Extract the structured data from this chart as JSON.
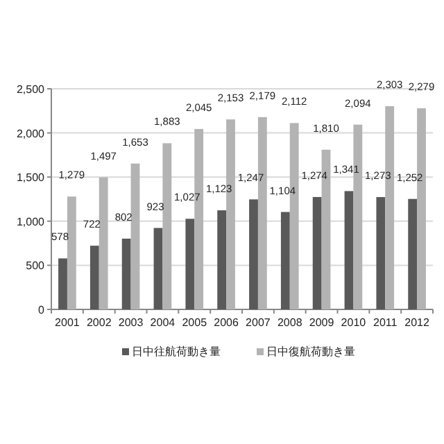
{
  "chart_data": {
    "type": "bar",
    "categories": [
      "2001",
      "2002",
      "2003",
      "2004",
      "2005",
      "2006",
      "2007",
      "2008",
      "2009",
      "2010",
      "2011",
      "2012"
    ],
    "series": [
      {
        "name": "日中往航荷動き量",
        "color": "#595959",
        "values": [
          578,
          722,
          802,
          923,
          1027,
          1123,
          1247,
          1104,
          1274,
          1341,
          1273,
          1252
        ],
        "value_labels": [
          "578",
          "722",
          "802",
          "923",
          "1,027",
          "1,123",
          "1,247",
          "1,104",
          "1,274",
          "1,341",
          "1,273",
          "1,252"
        ]
      },
      {
        "name": "日中復航荷動き量",
        "color": "#b3b3b3",
        "values": [
          1279,
          1497,
          1653,
          1883,
          2045,
          2153,
          2179,
          2112,
          1810,
          2094,
          2303,
          2279
        ],
        "value_labels": [
          "1,279",
          "1,497",
          "1,653",
          "1,883",
          "2,045",
          "2,153",
          "2,179",
          "2,112",
          "1,810",
          "2,094",
          "2,303",
          "2,279"
        ]
      }
    ],
    "ylim": [
      0,
      2500
    ],
    "yticks": [
      0,
      500,
      {
        "value": 1000,
        "label": "1,000"
      },
      {
        "value": 1500,
        "label": "1,500"
      },
      {
        "value": 2000,
        "label": "2,000"
      },
      {
        "value": 2500,
        "label": "2,500"
      }
    ],
    "grid": "y",
    "legend": "bottom"
  }
}
